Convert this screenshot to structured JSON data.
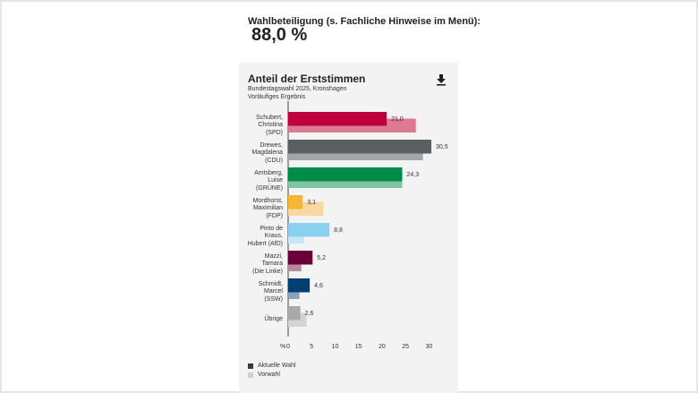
{
  "turnout": {
    "label": "Wahlbeteiligung (s. Fachliche Hinweise im Menü):",
    "value": "88,0 %"
  },
  "card": {
    "title": "Anteil der Erststimmen",
    "subtitle1": "Bundestagswahl 2025, Kronshagen",
    "subtitle2": "Vorläufiges Ergebnis",
    "download_icon": "download-icon"
  },
  "chart_data": {
    "type": "bar",
    "orientation": "horizontal",
    "categories": [
      [
        "Schubert,",
        "Christina",
        "(SPD)"
      ],
      [
        "Drewes,",
        "Magdalena",
        "(CDU)"
      ],
      [
        "Amtsberg,",
        "Luise",
        "(GRÜNE)"
      ],
      [
        "Mordhorst,",
        "Maximilian",
        "(FDP)"
      ],
      [
        "Pinto de",
        "Kraus,",
        "Hubert (AfD)"
      ],
      [
        "Mazzi,",
        "Tamara",
        "(Die Linke)"
      ],
      [
        "Schmidt,",
        "Marcel",
        "(SSW)"
      ],
      [
        "Übrige"
      ]
    ],
    "current_labels": [
      "21,0",
      "30,5",
      "24,3",
      "3,1",
      "8,8",
      "5,2",
      "4,6",
      "2,6"
    ],
    "series": [
      {
        "name": "Aktuelle Wahl",
        "values": [
          21.0,
          30.5,
          24.3,
          3.1,
          8.8,
          5.2,
          4.6,
          2.6
        ]
      },
      {
        "name": "Vorwahl",
        "values": [
          27.2,
          28.7,
          24.3,
          7.5,
          3.4,
          2.8,
          2.4,
          3.9
        ]
      }
    ],
    "colors_current": [
      "#c0003c",
      "#5a6062",
      "#008b46",
      "#f5b730",
      "#8ad1ef",
      "#6b0039",
      "#003f72",
      "#a9a9a9"
    ],
    "colors_previous": [
      "#dd7a92",
      "#a3a7a8",
      "#7fc4a1",
      "#f9d8a0",
      "#c5e8f7",
      "#b8889c",
      "#8aa3bb",
      "#d3d3d3"
    ],
    "xunit": "%",
    "xticks": [
      0,
      5,
      10,
      15,
      20,
      25,
      30
    ],
    "xlim": [
      0,
      30.5
    ],
    "legend": [
      {
        "label": "Aktuelle Wahl",
        "color": "#3a3a3a"
      },
      {
        "label": "Vorwahl",
        "color": "#cfcfcf"
      }
    ]
  }
}
